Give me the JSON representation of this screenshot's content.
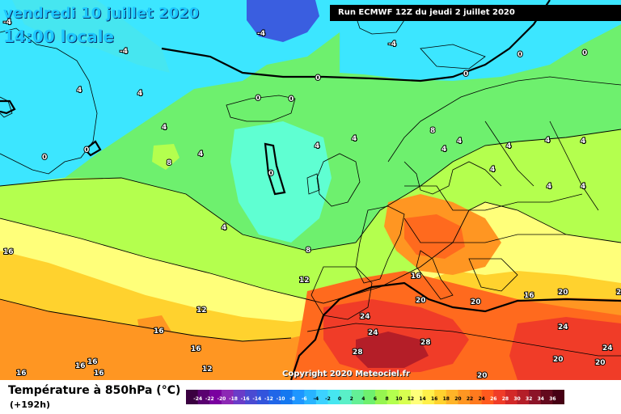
{
  "map": {
    "title_line1": "vendredi 10 juillet 2020",
    "title_line2": "14:00 locale",
    "run_info": "Run ECMWF 12Z du jeudi 2 juillet 2020",
    "copyright": "Copyright 2020 Meteociel.fr",
    "legend_title": "Température à 850hPa (°C)",
    "legend_subtitle": "(+192h)",
    "colors": {
      "deep_blue": "#3a5ee0",
      "light_blue": "#3ce6ff",
      "aqua": "#5fffd2",
      "green": "#6ef06e",
      "light_green": "#b4ff4e",
      "yellow_green": "#e6ff50",
      "pale_yellow": "#ffff7a",
      "yellow": "#fff04a",
      "orange_light": "#ffc828",
      "orange": "#ff9622",
      "orange_red": "#ff6a1e",
      "red": "#f03c28",
      "dark_red": "#b41e28"
    },
    "isotherm_labels": [
      "-4",
      "-4",
      "-4",
      "-4",
      "0",
      "0",
      "0",
      "0",
      "0",
      "0",
      "0",
      "0",
      "0",
      "4",
      "4",
      "4",
      "4",
      "4",
      "4",
      "4",
      "4",
      "4",
      "4",
      "4",
      "4",
      "4",
      "4",
      "4",
      "8",
      "8",
      "8",
      "12",
      "12",
      "16",
      "16",
      "16",
      "16",
      "16",
      "16",
      "16",
      "16",
      "16",
      "20",
      "20",
      "20",
      "20",
      "24",
      "24",
      "24",
      "28",
      "28",
      "24",
      "24",
      "20",
      "20",
      "20",
      "12"
    ],
    "colorbar_ticks": [
      "-24",
      "-22",
      "-20",
      "-18",
      "-16",
      "-14",
      "-12",
      "-10",
      "-8",
      "-6",
      "-4",
      "-2",
      "0",
      "2",
      "4",
      "6",
      "8",
      "10",
      "12",
      "14",
      "16",
      "18",
      "20",
      "22",
      "24",
      "26",
      "28",
      "30",
      "32",
      "34",
      "36"
    ],
    "colorbar_colors": [
      "#3a0040",
      "#5a0070",
      "#7a00a0",
      "#8c28b4",
      "#6a3cc8",
      "#4a4ad2",
      "#3254dc",
      "#2066e8",
      "#1478f0",
      "#1e96ff",
      "#28b4ff",
      "#3cd2ff",
      "#46e6f0",
      "#5af0c8",
      "#64f096",
      "#6ef06e",
      "#96f550",
      "#b4ff4e",
      "#d8ff50",
      "#ffff7a",
      "#fff04a",
      "#ffd22e",
      "#ffb428",
      "#ff9622",
      "#ff7a1e",
      "#ff5a1e",
      "#f03c28",
      "#d22828",
      "#b41e28",
      "#8c1428",
      "#640a1e",
      "#460014"
    ]
  }
}
